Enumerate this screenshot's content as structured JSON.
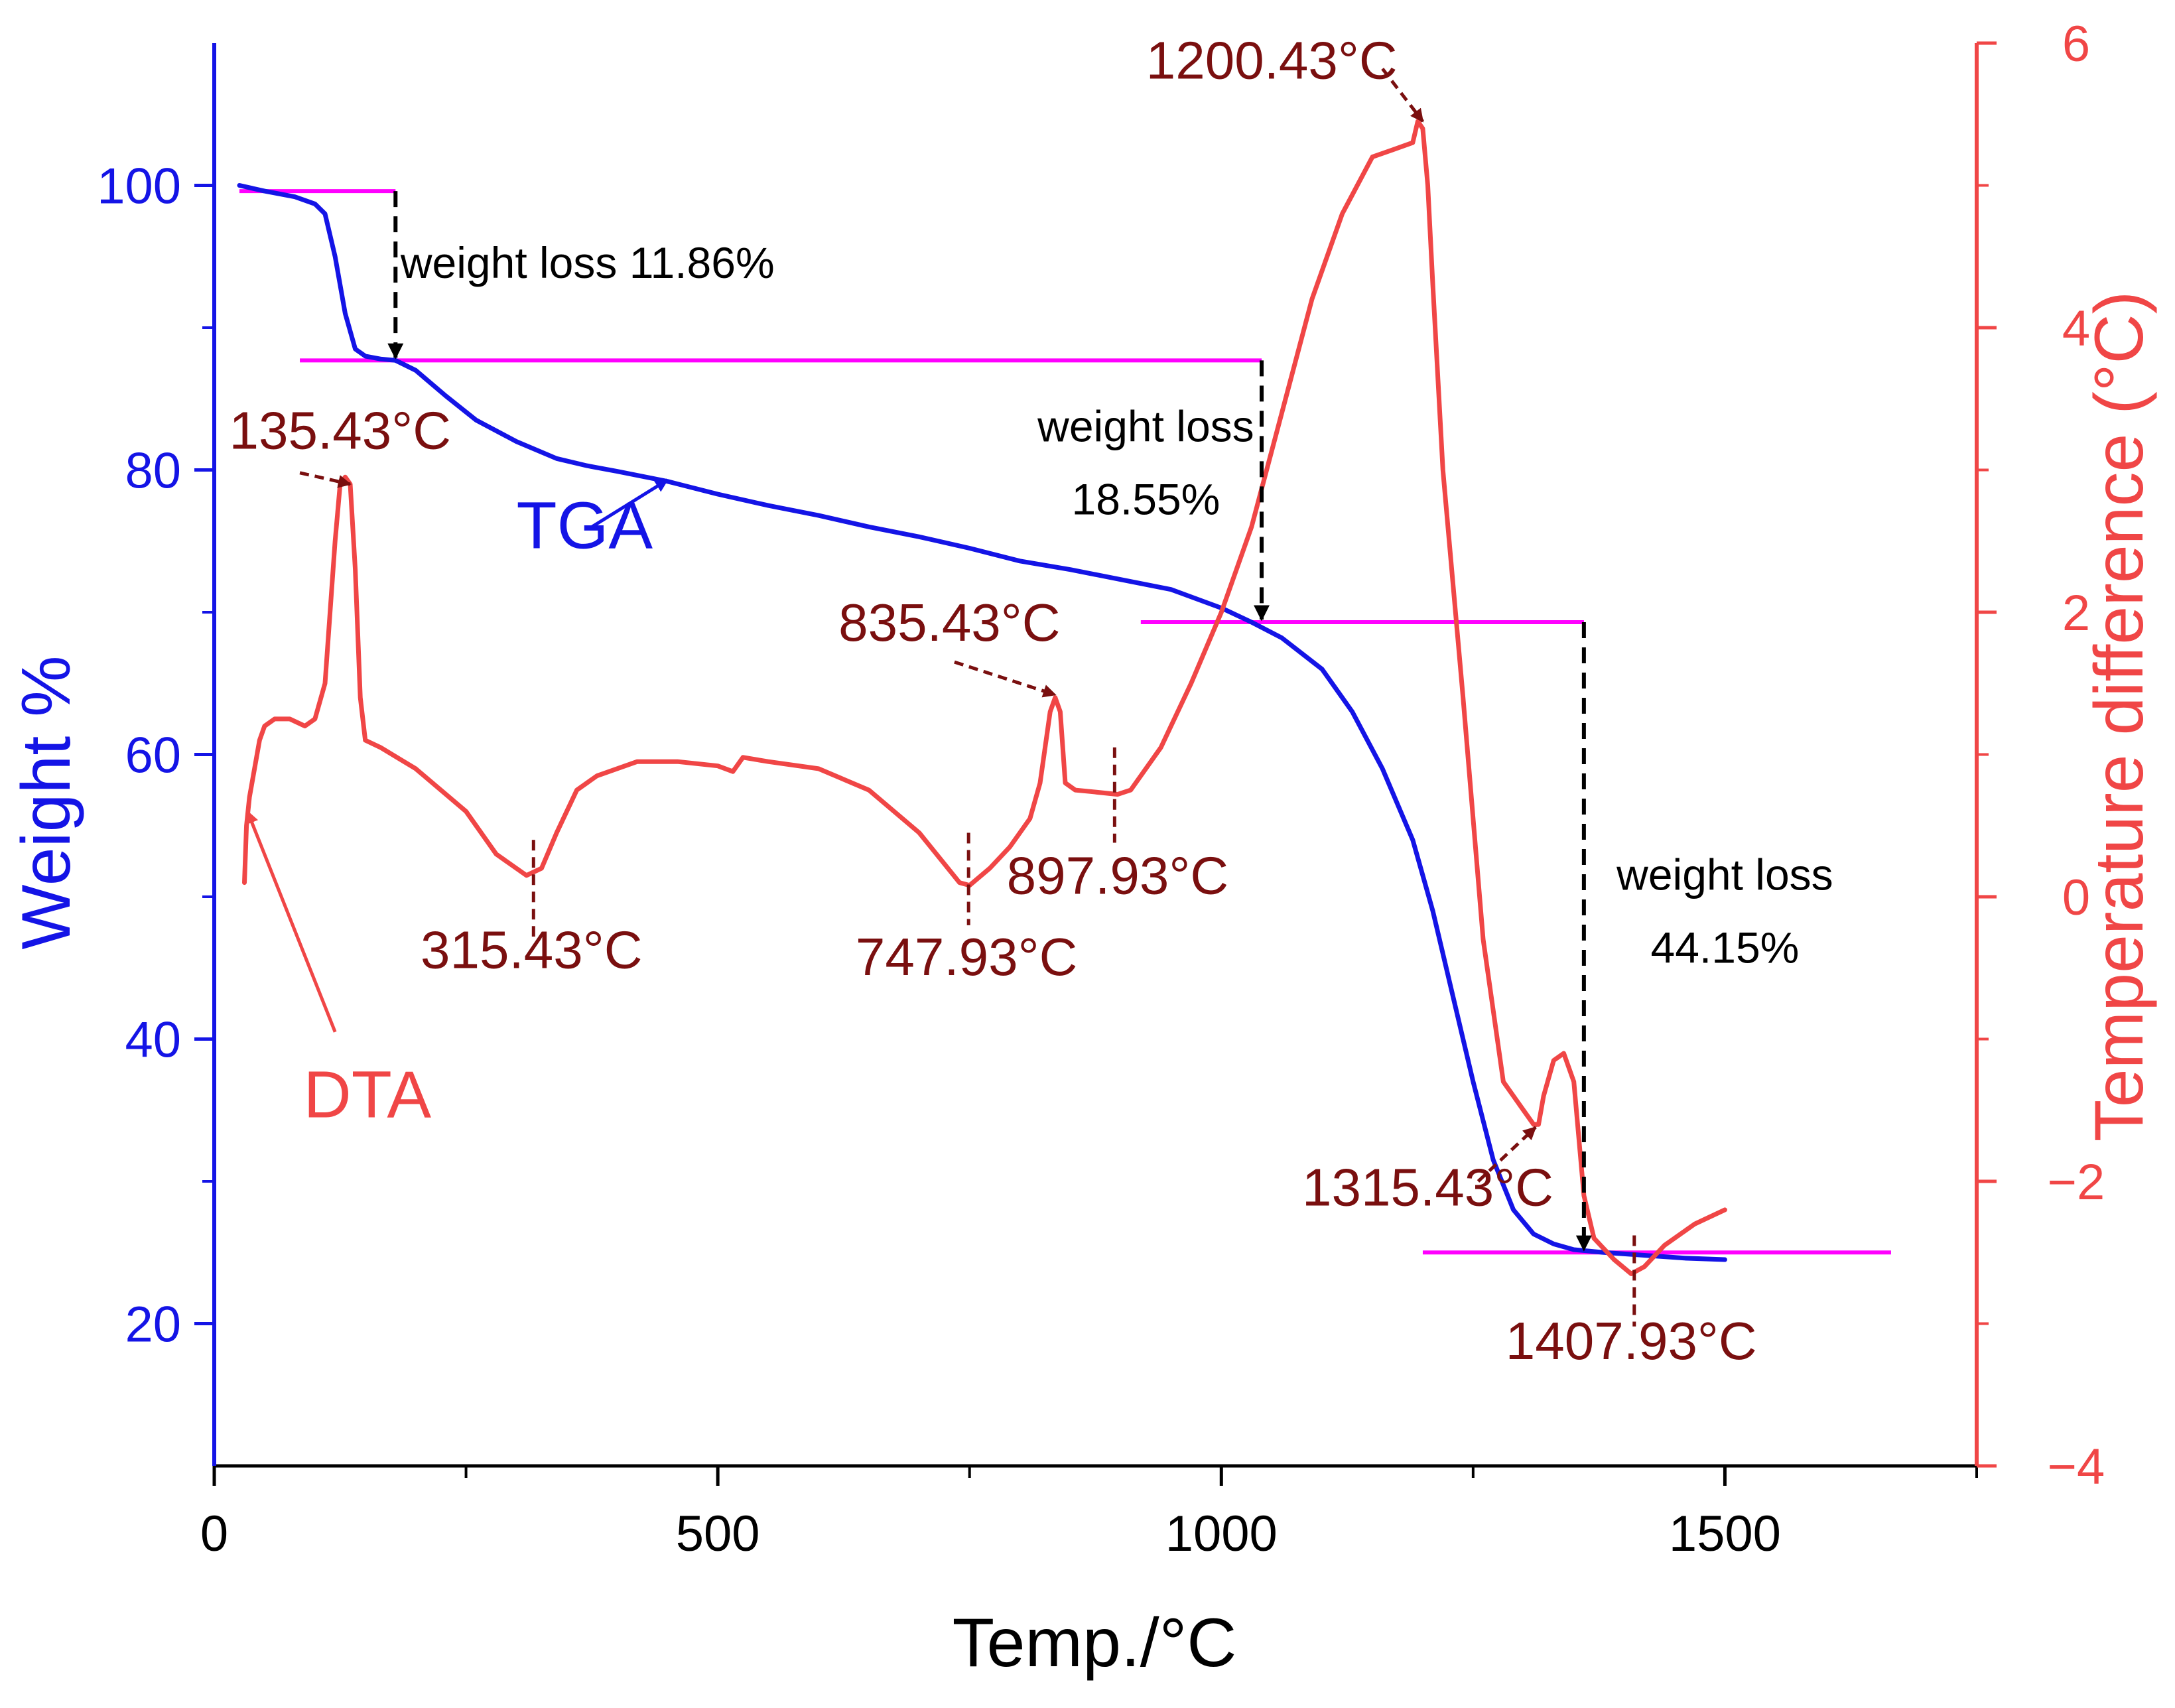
{
  "chart_data": {
    "type": "line",
    "xlabel": "Temp./°C",
    "ylabel_left": "Weight %",
    "ylabel_right": "Temperature difference (°C)",
    "xlim": [
      0,
      1750
    ],
    "ylim_left": [
      10,
      110
    ],
    "ylim_right": [
      -4,
      6
    ],
    "x_ticks": [
      0,
      500,
      1000,
      1500
    ],
    "x_tick_labels": [
      "0",
      "500",
      "1000",
      "1500"
    ],
    "x_minor_ticks": [
      250,
      750,
      1250,
      1750
    ],
    "y_left_ticks": [
      20,
      40,
      60,
      80,
      100
    ],
    "y_left_tick_labels": [
      "20",
      "40",
      "60",
      "80",
      "100"
    ],
    "y_left_minor_ticks": [
      30,
      50,
      70,
      90
    ],
    "y_right_ticks": [
      -4,
      -2,
      0,
      2,
      4,
      6
    ],
    "y_right_tick_labels": [
      "−4",
      "−2",
      "0",
      "2",
      "4",
      "6"
    ],
    "y_right_minor_ticks": [
      -3,
      -1,
      1,
      3,
      5
    ],
    "colors": {
      "tga": "#1414e6",
      "dta": "#f04646",
      "level": "#ff00ff",
      "annot": "#7a0f0f",
      "drop": "#000000",
      "left_axis": "#1414e6",
      "right_axis": "#f04646"
    },
    "series": [
      {
        "name": "TGA",
        "axis": "left",
        "x": [
          25,
          50,
          80,
          100,
          110,
          120,
          130,
          140,
          150,
          165,
          180,
          200,
          230,
          260,
          300,
          340,
          370,
          400,
          450,
          500,
          550,
          600,
          650,
          700,
          750,
          800,
          850,
          900,
          950,
          1000,
          1030,
          1060,
          1100,
          1130,
          1160,
          1190,
          1210,
          1230,
          1250,
          1270,
          1290,
          1310,
          1330,
          1350,
          1380,
          1420,
          1460,
          1500
        ],
        "y": [
          100,
          99.6,
          99.2,
          98.7,
          98,
          95,
          91,
          88.5,
          88,
          87.8,
          87.7,
          87,
          85.2,
          83.5,
          82,
          80.8,
          80.3,
          79.9,
          79.2,
          78.3,
          77.5,
          76.8,
          76,
          75.3,
          74.5,
          73.6,
          73,
          72.3,
          71.6,
          70.3,
          69.3,
          68.2,
          66,
          63,
          59,
          54,
          49,
          43,
          37,
          31.5,
          28,
          26.3,
          25.6,
          25.2,
          25,
          24.8,
          24.6,
          24.5
        ]
      },
      {
        "name": "DTA",
        "axis": "right",
        "x": [
          30,
          32,
          35,
          40,
          45,
          50,
          60,
          75,
          90,
          100,
          110,
          120,
          125,
          130,
          135,
          140,
          145,
          150,
          165,
          200,
          250,
          280,
          310,
          325,
          340,
          360,
          380,
          420,
          460,
          500,
          515,
          525,
          550,
          600,
          650,
          700,
          740,
          750,
          770,
          790,
          810,
          820,
          830,
          835,
          840,
          845,
          855,
          870,
          897,
          910,
          940,
          970,
          1000,
          1030,
          1060,
          1090,
          1120,
          1150,
          1170,
          1190,
          1195,
          1200,
          1205,
          1210,
          1220,
          1240,
          1260,
          1280,
          1300,
          1310,
          1315,
          1320,
          1330,
          1340,
          1350,
          1360,
          1370,
          1390,
          1407,
          1420,
          1440,
          1470,
          1500
        ],
        "y": [
          0.1,
          0.5,
          0.7,
          0.9,
          1.1,
          1.2,
          1.25,
          1.25,
          1.2,
          1.25,
          1.5,
          2.5,
          2.9,
          2.95,
          2.9,
          2.3,
          1.4,
          1.1,
          1.05,
          0.9,
          0.6,
          0.3,
          0.15,
          0.2,
          0.45,
          0.75,
          0.85,
          0.95,
          0.95,
          0.92,
          0.88,
          0.98,
          0.95,
          0.9,
          0.75,
          0.45,
          0.1,
          0.08,
          0.2,
          0.35,
          0.55,
          0.8,
          1.3,
          1.4,
          1.3,
          0.8,
          0.75,
          0.74,
          0.72,
          0.75,
          1.05,
          1.5,
          2.0,
          2.6,
          3.4,
          4.2,
          4.8,
          5.2,
          5.25,
          5.3,
          5.45,
          5.4,
          5.0,
          4.3,
          3.0,
          1.4,
          -0.3,
          -1.3,
          -1.5,
          -1.6,
          -1.6,
          -1.4,
          -1.15,
          -1.1,
          -1.3,
          -2.1,
          -2.4,
          -2.55,
          -2.65,
          -2.6,
          -2.45,
          -2.3,
          -2.2
        ]
      }
    ],
    "level_lines": [
      {
        "x1": 25,
        "x2": 180,
        "weight": 99.6
      },
      {
        "x1": 85,
        "x2": 1040,
        "weight": 87.7
      },
      {
        "x1": 920,
        "x2": 1360,
        "weight": 69.3
      },
      {
        "x1": 1200,
        "x2": 1665,
        "weight": 25
      }
    ],
    "weight_drops": [
      {
        "x": 180,
        "from": 99.6,
        "to": 87.7
      },
      {
        "x": 1040,
        "from": 87.7,
        "to": 69.3
      },
      {
        "x": 1360,
        "from": 69.3,
        "to": 25
      }
    ],
    "weight_loss_labels": [
      {
        "id": "wl1",
        "lines": [
          "weight loss 11.86%"
        ],
        "x": 185,
        "weight": 93.5,
        "anchor": "start"
      },
      {
        "id": "wl2",
        "lines": [
          "weight loss",
          "18.55%"
        ],
        "x": 925,
        "weight": 82,
        "anchor": "middle"
      },
      {
        "id": "wl3",
        "lines": [
          "weight loss",
          "44.15%"
        ],
        "x": 1500,
        "weight": 50.5,
        "anchor": "middle"
      }
    ],
    "peak_labels": [
      {
        "text": "135.43°C",
        "label_x": 125,
        "label_dt": 3.15,
        "anchor": "middle",
        "arrow_from_x": 85,
        "arrow_from_dt": 2.98,
        "arrow_to_x": 135,
        "arrow_to_dt": 2.9
      },
      {
        "text": "835.43°C",
        "label_x": 730,
        "label_dt": 1.8,
        "anchor": "middle",
        "arrow_from_x": 735,
        "arrow_from_dt": 1.65,
        "arrow_to_x": 835,
        "arrow_to_dt": 1.42
      },
      {
        "text": "1200.43°C",
        "label_x": 1050,
        "label_dt": 5.75,
        "anchor": "middle",
        "arrow_from_x": 1160,
        "arrow_from_dt": 5.82,
        "arrow_to_x": 1200,
        "arrow_to_dt": 5.45
      },
      {
        "text": "1315.43°C",
        "label_x": 1205,
        "label_dt": -2.17,
        "anchor": "middle",
        "arrow_from_x": 1255,
        "arrow_from_dt": -2.0,
        "arrow_to_x": 1312,
        "arrow_to_dt": -1.62
      }
    ],
    "valley_labels": [
      {
        "text": "315.43°C",
        "label_x": 315,
        "label_dt": -0.5,
        "anchor": "middle",
        "line_x": 317,
        "dt_top": 0.4,
        "dt_bottom": -0.28
      },
      {
        "text": "747.93°C",
        "label_x": 747,
        "label_dt": -0.55,
        "anchor": "middle",
        "line_x": 749,
        "dt_top": 0.45,
        "dt_bottom": -0.2
      },
      {
        "text": "897.93°C",
        "label_x": 897,
        "label_dt": 0.02,
        "anchor": "middle",
        "line_x": 894,
        "dt_top": 1.05,
        "dt_bottom": 0.38
      },
      {
        "text": "1407.93°C",
        "label_x": 1407,
        "label_dt": -3.25,
        "anchor": "middle",
        "line_x": 1410,
        "dt_top": -2.38,
        "dt_bottom": -3.02
      }
    ],
    "series_labels": [
      {
        "text": "TGA",
        "x": 300,
        "weight": 74.5,
        "anchor": "start",
        "arrow_from_x": 375,
        "arrow_from_weight": 76,
        "arrow_to_x": 450,
        "arrow_to_weight": 79.3
      },
      {
        "text": "DTA",
        "x": 152,
        "weight": 34.5,
        "anchor": "middle",
        "arrow_from_x": 120,
        "arrow_from_weight": 40.5,
        "arrow_to_x": 33,
        "arrow_to_weight": 56
      }
    ]
  }
}
